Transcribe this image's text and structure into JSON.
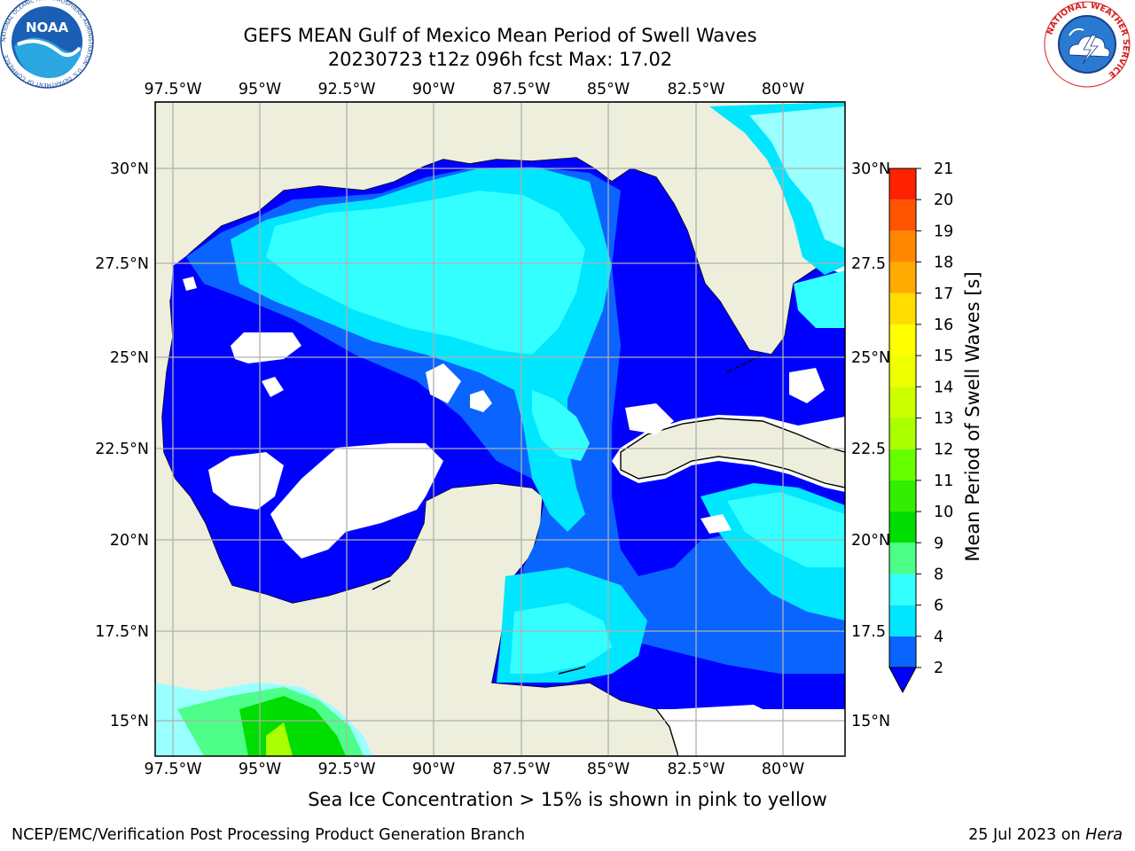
{
  "header": {
    "title_line1": "GEFS MEAN Gulf of Mexico Mean Period of Swell Waves",
    "title_line2": "20230723 t12z 096h fcst   Max: 17.02"
  },
  "map": {
    "lon_ticks": [
      "97.5°W",
      "95°W",
      "92.5°W",
      "90°W",
      "87.5°W",
      "85°W",
      "82.5°W",
      "80°W"
    ],
    "lat_ticks_left": [
      "30°N",
      "27.5°N",
      "25°N",
      "22.5°N",
      "20°N",
      "17.5°N",
      "15°N"
    ],
    "lat_ticks_right": [
      "30°N",
      "27.5",
      "25°N",
      "22.5",
      "20°N",
      "17.5",
      "15°N"
    ],
    "colors": {
      "land": "#eeeedd",
      "grid": "#b0b0b0"
    }
  },
  "colorbar": {
    "label": "Mean Period of Swell Waves [s]",
    "ticks": [
      "2",
      "4",
      "6",
      "8",
      "9",
      "10",
      "11",
      "12",
      "13",
      "14",
      "15",
      "16",
      "17",
      "18",
      "19",
      "20",
      "21"
    ],
    "colors": [
      "#0a64ff",
      "#00e6ff",
      "#33ffff",
      "#99ffff",
      "#4dff88",
      "#00dd00",
      "#33ee00",
      "#66ff00",
      "#aaff00",
      "#ccff00",
      "#eeff00",
      "#ffff00",
      "#ffdd00",
      "#ffaa00",
      "#ff8800",
      "#ff5500",
      "#ff2200",
      "#ff0000"
    ],
    "extend_color": "#0000ff"
  },
  "notes": {
    "sea_ice": "Sea Ice Concentration > 15% is shown in pink to yellow"
  },
  "footer": {
    "left": "NCEP/EMC/Verification Post Processing Product Generation Branch",
    "date": "25 Jul 2023 on ",
    "machine": "Hera"
  },
  "logos": {
    "noaa_text": "NOAA",
    "noaa_ring_text": "NATIONAL OCEANIC AND ATMOSPHERIC ADMINISTRATION · U.S. DEPARTMENT OF COMMERCE",
    "nws_ring_text": "NATIONAL WEATHER SERVICE"
  }
}
